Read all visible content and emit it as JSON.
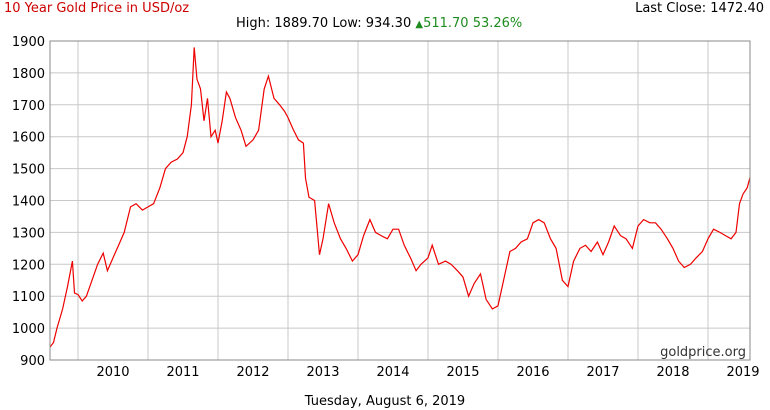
{
  "header": {
    "title": "10 Year Gold Price in USD/oz",
    "last_close_label": "Last Close:",
    "last_close_value": "1472.40",
    "high_label": "High:",
    "high_value": "1889.70",
    "low_label": "Low:",
    "low_value": "934.30",
    "change_value": "511.70",
    "change_pct": "53.26%"
  },
  "footer": {
    "date": "Tuesday, August 6, 2019",
    "watermark": "goldprice.org"
  },
  "colors": {
    "line": "#ee0000",
    "title": "#cc0000",
    "change_up": "#1e8c1e",
    "grid": "#c8c8c8"
  },
  "chart_data": {
    "type": "line",
    "title": "10 Year Gold Price in USD/oz",
    "xlabel": "",
    "ylabel": "",
    "ylim": [
      900,
      1900
    ],
    "xlim": [
      2009.6,
      2019.6
    ],
    "yticks": [
      900,
      1000,
      1100,
      1200,
      1300,
      1400,
      1500,
      1600,
      1700,
      1800,
      1900
    ],
    "xticks": [
      "2010",
      "2011",
      "2012",
      "2013",
      "2014",
      "2015",
      "2016",
      "2017",
      "2018",
      "2019"
    ],
    "grid": true,
    "series": [
      {
        "x": [
          2009.6,
          2009.65,
          2009.7,
          2009.78,
          2009.85,
          2009.92,
          2009.95,
          2010.0,
          2010.06,
          2010.12,
          2010.2,
          2010.28,
          2010.36,
          2010.42,
          2010.5,
          2010.58,
          2010.66,
          2010.75,
          2010.83,
          2010.92,
          2011.0,
          2011.08,
          2011.17,
          2011.25,
          2011.33,
          2011.42,
          2011.5,
          2011.56,
          2011.62,
          2011.66,
          2011.7,
          2011.75,
          2011.8,
          2011.85,
          2011.9,
          2011.96,
          2012.0,
          2012.06,
          2012.12,
          2012.17,
          2012.25,
          2012.33,
          2012.4,
          2012.5,
          2012.58,
          2012.66,
          2012.72,
          2012.8,
          2012.88,
          2012.95,
          2013.0,
          2013.08,
          2013.15,
          2013.22,
          2013.25,
          2013.3,
          2013.38,
          2013.45,
          2013.5,
          2013.58,
          2013.66,
          2013.75,
          2013.83,
          2013.92,
          2014.0,
          2014.08,
          2014.17,
          2014.25,
          2014.33,
          2014.42,
          2014.5,
          2014.58,
          2014.66,
          2014.75,
          2014.83,
          2014.9,
          2015.0,
          2015.06,
          2015.15,
          2015.25,
          2015.33,
          2015.42,
          2015.5,
          2015.58,
          2015.66,
          2015.75,
          2015.83,
          2015.92,
          2016.0,
          2016.08,
          2016.17,
          2016.25,
          2016.33,
          2016.42,
          2016.5,
          2016.58,
          2016.66,
          2016.75,
          2016.83,
          2016.92,
          2017.0,
          2017.08,
          2017.17,
          2017.25,
          2017.33,
          2017.42,
          2017.5,
          2017.58,
          2017.66,
          2017.75,
          2017.83,
          2017.92,
          2018.0,
          2018.08,
          2018.17,
          2018.25,
          2018.33,
          2018.42,
          2018.5,
          2018.58,
          2018.66,
          2018.75,
          2018.83,
          2018.92,
          2019.0,
          2019.08,
          2019.17,
          2019.25,
          2019.33,
          2019.4,
          2019.45,
          2019.5,
          2019.56,
          2019.6
        ],
        "values": [
          940,
          955,
          1000,
          1060,
          1130,
          1210,
          1110,
          1105,
          1085,
          1100,
          1150,
          1200,
          1235,
          1180,
          1220,
          1260,
          1300,
          1380,
          1390,
          1370,
          1380,
          1390,
          1440,
          1500,
          1520,
          1530,
          1550,
          1600,
          1700,
          1880,
          1780,
          1750,
          1650,
          1720,
          1600,
          1620,
          1580,
          1650,
          1740,
          1720,
          1660,
          1620,
          1570,
          1590,
          1620,
          1750,
          1790,
          1720,
          1700,
          1680,
          1660,
          1620,
          1590,
          1580,
          1470,
          1410,
          1400,
          1230,
          1280,
          1390,
          1330,
          1280,
          1250,
          1210,
          1230,
          1290,
          1340,
          1300,
          1290,
          1280,
          1310,
          1310,
          1260,
          1220,
          1180,
          1200,
          1220,
          1260,
          1200,
          1210,
          1200,
          1180,
          1160,
          1100,
          1140,
          1170,
          1090,
          1060,
          1070,
          1150,
          1240,
          1250,
          1270,
          1280,
          1330,
          1340,
          1330,
          1280,
          1250,
          1150,
          1130,
          1210,
          1250,
          1260,
          1240,
          1270,
          1230,
          1270,
          1320,
          1290,
          1280,
          1250,
          1320,
          1340,
          1330,
          1330,
          1310,
          1280,
          1250,
          1210,
          1190,
          1200,
          1220,
          1240,
          1280,
          1310,
          1300,
          1290,
          1280,
          1300,
          1390,
          1420,
          1440,
          1472
        ]
      }
    ]
  }
}
